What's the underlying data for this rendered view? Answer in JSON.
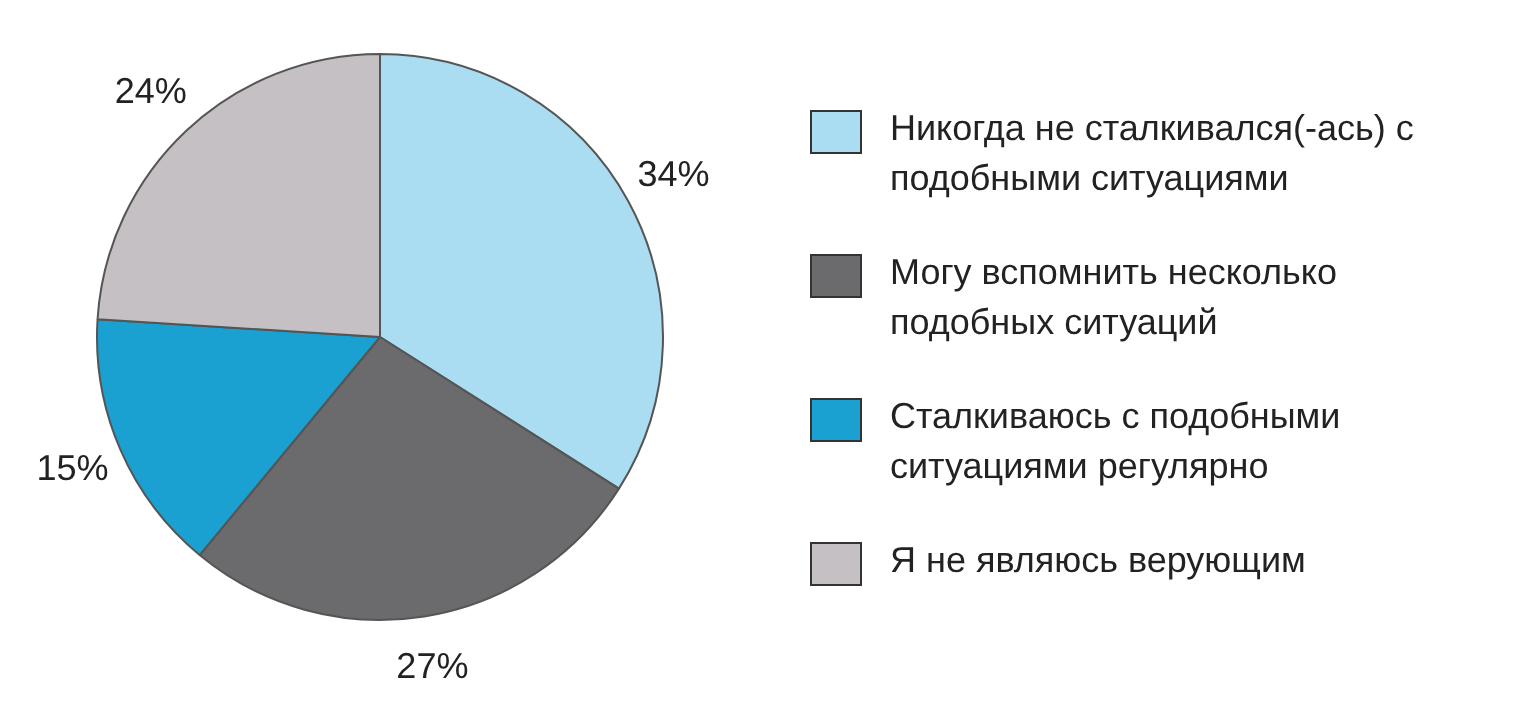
{
  "chart_data": {
    "type": "pie",
    "categories": [
      "Никогда не сталкивался(-ась) с подобными ситуациями",
      "Могу вспомнить несколько подобных ситуаций",
      "Сталкиваюсь с подобными ситуациями регулярно",
      "Я не являюсь верующим"
    ],
    "values": [
      34,
      27,
      15,
      24
    ],
    "colors": [
      "#aadcf2",
      "#6b6b6d",
      "#1ba1d1",
      "#c5c0c3"
    ],
    "value_labels": [
      "34%",
      "27%",
      "15%",
      "24%"
    ],
    "legend": "right"
  }
}
